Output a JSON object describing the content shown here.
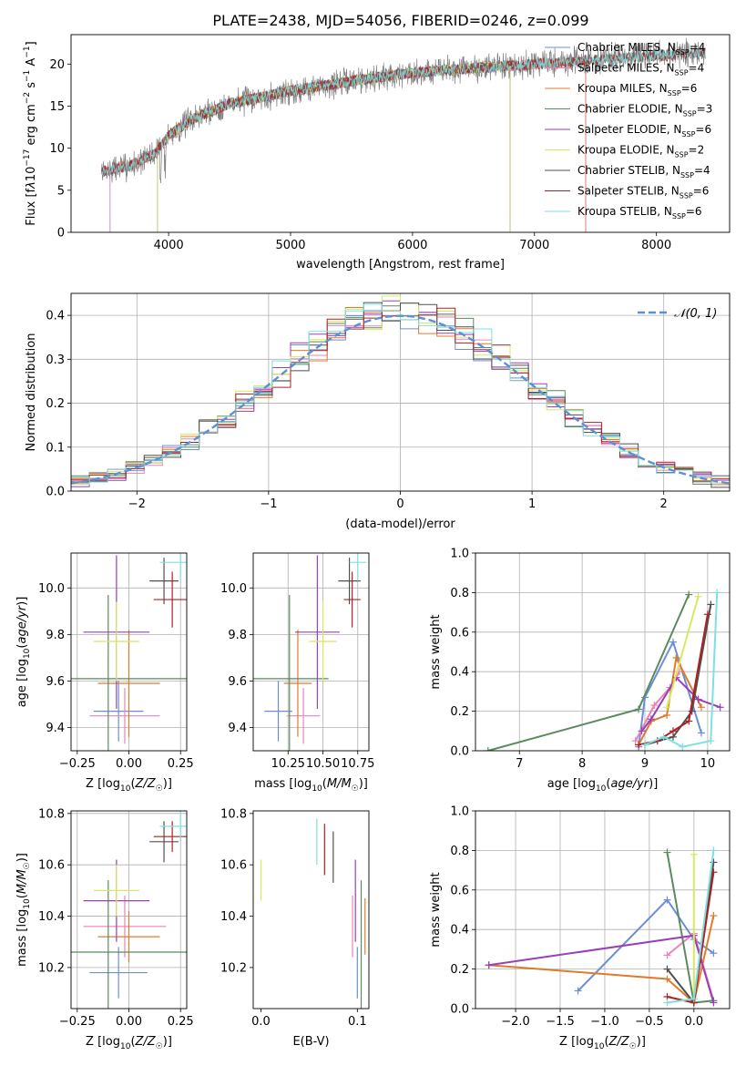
{
  "page_title": "PLATE=2438, MJD=54056, FIBERID=0246, z=0.099",
  "colors": {
    "Chabrier MILES": "#6a8fd8",
    "Salpeter MILES": "#ee82b8",
    "Kroupa MILES": "#e07b2a",
    "Chabrier ELODIE": "#5a8a5f",
    "Salpeter ELODIE": "#9a3fb8",
    "Kroupa ELODIE": "#d8e860",
    "Chabrier STELIB": "#505050",
    "Salpeter STELIB": "#b02020",
    "Kroupa STELIB": "#7ee0e0",
    "normal_curve": "#5b8fd6",
    "grid": "#b0b0b0"
  },
  "chart_data": [
    {
      "id": "spectrum",
      "type": "line",
      "title": "PLATE=2438, MJD=54056, FIBERID=0246, z=0.099",
      "xlabel": "wavelength [Angstrom, rest frame]",
      "ylabel": "Flux [fλ10⁻¹⁷ erg cm⁻² s⁻¹ A⁻¹]",
      "xlim": [
        3200,
        8600
      ],
      "ylim": [
        0,
        23.5
      ],
      "xticks": [
        4000,
        5000,
        6000,
        7000,
        8000
      ],
      "yticks": [
        0,
        5,
        10,
        15,
        20
      ],
      "grid": false,
      "legend_position": "right",
      "legend": [
        {
          "label": "Chabrier MILES, N",
          "sub": "SSP",
          "suffix": "=4"
        },
        {
          "label": "Salpeter MILES, N",
          "sub": "SSP",
          "suffix": "=4"
        },
        {
          "label": "Kroupa MILES, N",
          "sub": "SSP",
          "suffix": "=6"
        },
        {
          "label": "Chabrier ELODIE, N",
          "sub": "SSP",
          "suffix": "=3"
        },
        {
          "label": "Salpeter ELODIE, N",
          "sub": "SSP",
          "suffix": "=6"
        },
        {
          "label": "Kroupa ELODIE, N",
          "sub": "SSP",
          "suffix": "=2"
        },
        {
          "label": "Chabrier STELIB, N",
          "sub": "SSP",
          "suffix": "=4"
        },
        {
          "label": "Salpeter STELIB, N",
          "sub": "SSP",
          "suffix": "=6"
        },
        {
          "label": "Kroupa STELIB, N",
          "sub": "SSP",
          "suffix": "=6"
        }
      ],
      "continuum": [
        [
          3450,
          7.2
        ],
        [
          3700,
          8.0
        ],
        [
          3900,
          9.5
        ],
        [
          4000,
          11.5
        ],
        [
          4200,
          13.5
        ],
        [
          4500,
          15.3
        ],
        [
          4800,
          16.2
        ],
        [
          5000,
          16.8
        ],
        [
          5300,
          17.5
        ],
        [
          5600,
          18.2
        ],
        [
          5900,
          18.8
        ],
        [
          6200,
          19.2
        ],
        [
          6500,
          19.5
        ],
        [
          7000,
          20.0
        ],
        [
          7400,
          20.4
        ],
        [
          8000,
          21.0
        ],
        [
          8400,
          21.3
        ]
      ]
    },
    {
      "id": "residuals",
      "type": "line",
      "xlabel": "(data-model)/error",
      "ylabel": "Normed distribution",
      "xlim": [
        -2.5,
        2.5
      ],
      "ylim": [
        0,
        0.45
      ],
      "xticks": [
        -2,
        -1,
        0,
        1,
        2
      ],
      "yticks": [
        0.0,
        0.1,
        0.2,
        0.3,
        0.4
      ],
      "grid": true,
      "legend_position": "top-right",
      "legend": "𝒩(0, 1)"
    },
    {
      "id": "age_vs_Z",
      "type": "scatter",
      "xlabel": "Z [log₁₀(Z/Z☉)]",
      "ylabel": "age  [log₁₀(age/yr)]",
      "xlim": [
        -0.28,
        0.28
      ],
      "ylim": [
        9.3,
        10.15
      ],
      "xticks": [
        -0.25,
        0.0,
        0.25
      ],
      "yticks": [
        9.4,
        9.6,
        9.8,
        10.0
      ],
      "grid": true,
      "points": [
        {
          "model": "Chabrier MILES",
          "x": -0.05,
          "xerr": 0.12,
          "y": 9.47,
          "yerr": 0.13
        },
        {
          "model": "Salpeter MILES",
          "x": -0.02,
          "xerr": 0.17,
          "y": 9.45,
          "yerr": 0.12
        },
        {
          "model": "Kroupa MILES",
          "x": 0.0,
          "xerr": 0.15,
          "y": 9.59,
          "yerr": 0.23
        },
        {
          "model": "Chabrier ELODIE",
          "x": -0.1,
          "xerr": 0.4,
          "y": 9.61,
          "yerr": 0.36
        },
        {
          "model": "Salpeter ELODIE",
          "x": -0.06,
          "xerr": 0.16,
          "y": 9.81,
          "yerr": 0.33
        },
        {
          "model": "Kroupa ELODIE",
          "x": -0.06,
          "xerr": 0.11,
          "y": 9.77,
          "yerr": 0.17
        },
        {
          "model": "Chabrier STELIB",
          "x": 0.17,
          "xerr": 0.07,
          "y": 10.03,
          "yerr": 0.1
        },
        {
          "model": "Salpeter STELIB",
          "x": 0.21,
          "xerr": 0.09,
          "y": 9.95,
          "yerr": 0.12
        },
        {
          "model": "Kroupa STELIB",
          "x": 0.25,
          "xerr": 0.1,
          "y": 10.11,
          "yerr": 0.08
        }
      ]
    },
    {
      "id": "age_vs_mass",
      "type": "scatter",
      "xlabel": "mass [log₁₀(M/M☉)]",
      "ylabel": "",
      "xlim": [
        10.0,
        10.83
      ],
      "ylim": [
        9.3,
        10.15
      ],
      "xticks": [
        10.25,
        10.5,
        10.75
      ],
      "yticks": [
        9.4,
        9.6,
        9.8,
        10.0
      ],
      "grid": true,
      "points": [
        {
          "model": "Chabrier MILES",
          "x": 10.18,
          "xerr": 0.1,
          "y": 9.47,
          "yerr": 0.13
        },
        {
          "model": "Salpeter MILES",
          "x": 10.36,
          "xerr": 0.12,
          "y": 9.45,
          "yerr": 0.12
        },
        {
          "model": "Kroupa MILES",
          "x": 10.32,
          "xerr": 0.1,
          "y": 9.59,
          "yerr": 0.23
        },
        {
          "model": "Chabrier ELODIE",
          "x": 10.26,
          "xerr": 0.28,
          "y": 9.61,
          "yerr": 0.36
        },
        {
          "model": "Salpeter ELODIE",
          "x": 10.46,
          "xerr": 0.16,
          "y": 9.81,
          "yerr": 0.33
        },
        {
          "model": "Kroupa ELODIE",
          "x": 10.5,
          "xerr": 0.1,
          "y": 9.77,
          "yerr": 0.17
        },
        {
          "model": "Chabrier STELIB",
          "x": 10.69,
          "xerr": 0.08,
          "y": 10.03,
          "yerr": 0.1
        },
        {
          "model": "Salpeter STELIB",
          "x": 10.71,
          "xerr": 0.06,
          "y": 9.95,
          "yerr": 0.12
        },
        {
          "model": "Kroupa STELIB",
          "x": 10.75,
          "xerr": 0.06,
          "y": 10.11,
          "yerr": 0.08
        }
      ]
    },
    {
      "id": "weights_vs_age",
      "type": "line",
      "xlabel": "age  [log₁₀(age/yr)]",
      "ylabel": "mass weight",
      "xlim": [
        6.3,
        10.35
      ],
      "ylim": [
        0,
        1.0
      ],
      "xticks": [
        7,
        8,
        9,
        10
      ],
      "yticks": [
        0.0,
        0.2,
        0.4,
        0.6,
        0.8,
        1.0
      ],
      "grid": true,
      "series": [
        {
          "model": "Chabrier MILES",
          "x": [
            8.9,
            9.0,
            9.45,
            9.9
          ],
          "y": [
            0.02,
            0.27,
            0.55,
            0.09
          ]
        },
        {
          "model": "Salpeter MILES",
          "x": [
            8.85,
            9.15,
            9.4,
            9.55
          ],
          "y": [
            0.05,
            0.23,
            0.32,
            0.4
          ]
        },
        {
          "model": "Kroupa MILES",
          "x": [
            8.9,
            9.1,
            9.35,
            9.5,
            9.9
          ],
          "y": [
            0.03,
            0.15,
            0.18,
            0.47,
            0.22
          ]
        },
        {
          "model": "Chabrier ELODIE",
          "x": [
            6.5,
            8.9,
            9.7
          ],
          "y": [
            0.0,
            0.21,
            0.79
          ]
        },
        {
          "model": "Salpeter ELODIE",
          "x": [
            8.95,
            9.1,
            9.5,
            9.85,
            10.2
          ],
          "y": [
            0.1,
            0.16,
            0.37,
            0.26,
            0.22
          ]
        },
        {
          "model": "Kroupa ELODIE",
          "x": [
            9.35,
            9.85
          ],
          "y": [
            0.22,
            0.78
          ]
        },
        {
          "model": "Chabrier STELIB",
          "x": [
            9.0,
            9.45,
            9.75,
            10.05
          ],
          "y": [
            0.03,
            0.07,
            0.2,
            0.74
          ]
        },
        {
          "model": "Salpeter STELIB",
          "x": [
            8.9,
            9.2,
            9.45,
            9.7,
            10.0
          ],
          "y": [
            0.03,
            0.05,
            0.1,
            0.15,
            0.69
          ]
        },
        {
          "model": "Kroupa STELIB",
          "x": [
            9.0,
            9.3,
            9.6,
            10.05,
            10.15
          ],
          "y": [
            0.03,
            0.07,
            0.02,
            0.05,
            0.8
          ]
        }
      ]
    },
    {
      "id": "mass_vs_Z",
      "type": "scatter",
      "xlabel": "Z [log₁₀(Z/Z☉)]",
      "ylabel": "mass [log₁₀(M/M☉)]",
      "xlim": [
        -0.28,
        0.28
      ],
      "ylim": [
        10.04,
        10.81
      ],
      "xticks": [
        -0.25,
        0.0,
        0.25
      ],
      "yticks": [
        10.2,
        10.4,
        10.6,
        10.8
      ],
      "grid": true,
      "points": [
        {
          "model": "Chabrier MILES",
          "x": -0.05,
          "xerr": 0.14,
          "y": 10.18,
          "yerr": 0.1
        },
        {
          "model": "Salpeter MILES",
          "x": -0.02,
          "xerr": 0.2,
          "y": 10.36,
          "yerr": 0.12
        },
        {
          "model": "Kroupa MILES",
          "x": 0.0,
          "xerr": 0.15,
          "y": 10.32,
          "yerr": 0.1
        },
        {
          "model": "Chabrier ELODIE",
          "x": -0.1,
          "xerr": 0.4,
          "y": 10.26,
          "yerr": 0.28
        },
        {
          "model": "Salpeter ELODIE",
          "x": -0.06,
          "xerr": 0.16,
          "y": 10.46,
          "yerr": 0.16
        },
        {
          "model": "Kroupa ELODIE",
          "x": -0.06,
          "xerr": 0.11,
          "y": 10.5,
          "yerr": 0.1
        },
        {
          "model": "Chabrier STELIB",
          "x": 0.17,
          "xerr": 0.07,
          "y": 10.69,
          "yerr": 0.08
        },
        {
          "model": "Salpeter STELIB",
          "x": 0.21,
          "xerr": 0.09,
          "y": 10.71,
          "yerr": 0.06
        },
        {
          "model": "Kroupa STELIB",
          "x": 0.25,
          "xerr": 0.1,
          "y": 10.75,
          "yerr": 0.06
        }
      ]
    },
    {
      "id": "mass_vs_ebv",
      "type": "scatter",
      "xlabel": "E(B-V)",
      "ylabel": "",
      "xlim": [
        -0.008,
        0.112
      ],
      "ylim": [
        10.04,
        10.81
      ],
      "xticks": [
        0.0,
        0.1
      ],
      "yticks": [
        10.2,
        10.4,
        10.6,
        10.8
      ],
      "grid": false,
      "points": [
        {
          "model": "Chabrier MILES",
          "x": 0.1,
          "y": 10.18,
          "yerr": 0.1
        },
        {
          "model": "Salpeter MILES",
          "x": 0.095,
          "y": 10.36,
          "yerr": 0.12
        },
        {
          "model": "Kroupa MILES",
          "x": 0.108,
          "y": 10.36,
          "yerr": 0.11
        },
        {
          "model": "Chabrier ELODIE",
          "x": 0.104,
          "y": 10.26,
          "yerr": 0.28
        },
        {
          "model": "Salpeter ELODIE",
          "x": 0.098,
          "y": 10.46,
          "yerr": 0.16
        },
        {
          "model": "Kroupa ELODIE",
          "x": 0.0,
          "y": 10.54,
          "yerr": 0.08
        },
        {
          "model": "Chabrier STELIB",
          "x": 0.075,
          "y": 10.63,
          "yerr": 0.1
        },
        {
          "model": "Salpeter STELIB",
          "x": 0.066,
          "y": 10.66,
          "yerr": 0.1
        },
        {
          "model": "Kroupa STELIB",
          "x": 0.058,
          "y": 10.69,
          "yerr": 0.09
        }
      ]
    },
    {
      "id": "weights_vs_Z",
      "type": "line",
      "xlabel": "Z [log₁₀(Z/Z☉)]",
      "ylabel": "mass weight",
      "xlim": [
        -2.45,
        0.4
      ],
      "ylim": [
        0,
        1.0
      ],
      "xticks": [
        -2.0,
        -1.5,
        -1.0,
        -0.5,
        0.0
      ],
      "yticks": [
        0.0,
        0.2,
        0.4,
        0.6,
        0.8,
        1.0
      ],
      "grid": true,
      "series": [
        {
          "model": "Chabrier MILES",
          "x": [
            -1.3,
            -0.3,
            0.0,
            0.22
          ],
          "y": [
            0.09,
            0.55,
            0.35,
            0.28
          ]
        },
        {
          "model": "Salpeter MILES",
          "x": [
            -0.3,
            0.0,
            0.22
          ],
          "y": [
            0.27,
            0.38,
            0.04
          ]
        },
        {
          "model": "Kroupa MILES",
          "x": [
            -2.3,
            -0.3,
            0.0,
            0.22
          ],
          "y": [
            0.22,
            0.15,
            0.03,
            0.47
          ]
        },
        {
          "model": "Chabrier ELODIE",
          "x": [
            -0.3,
            0.0,
            0.22
          ],
          "y": [
            0.79,
            0.03,
            0.04
          ]
        },
        {
          "model": "Salpeter ELODIE",
          "x": [
            -2.3,
            0.0,
            0.22
          ],
          "y": [
            0.22,
            0.37,
            0.03
          ]
        },
        {
          "model": "Kroupa ELODIE",
          "x": [
            0.0,
            0.0
          ],
          "y": [
            0.78,
            0.03
          ]
        },
        {
          "model": "Chabrier STELIB",
          "x": [
            -0.3,
            0.0,
            0.22
          ],
          "y": [
            0.2,
            0.03,
            0.74
          ]
        },
        {
          "model": "Salpeter STELIB",
          "x": [
            -0.3,
            0.0,
            0.22
          ],
          "y": [
            0.06,
            0.03,
            0.69
          ]
        },
        {
          "model": "Kroupa STELIB",
          "x": [
            -0.3,
            0.0,
            0.22
          ],
          "y": [
            0.03,
            0.05,
            0.8
          ]
        }
      ]
    }
  ]
}
